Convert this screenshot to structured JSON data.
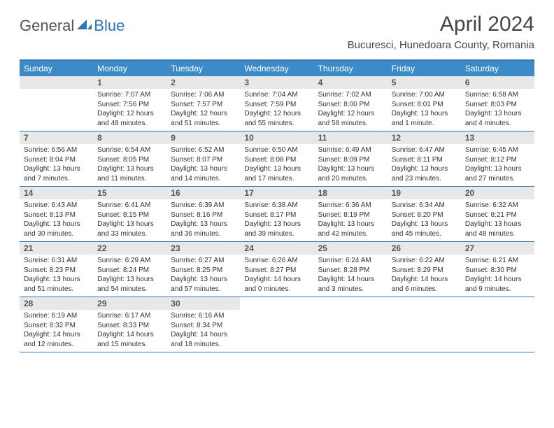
{
  "logo": {
    "general": "General",
    "blue": "Blue"
  },
  "title": "April 2024",
  "location": "Bucuresci, Hunedoara County, Romania",
  "colors": {
    "header_bar": "#3b8bc9",
    "border": "#2e75b6",
    "daynum_bg": "#e8e8e8",
    "text": "#333333",
    "title_text": "#444444",
    "logo_blue": "#2e75b6",
    "logo_gray": "#555555",
    "background": "#ffffff"
  },
  "dow": [
    "Sunday",
    "Monday",
    "Tuesday",
    "Wednesday",
    "Thursday",
    "Friday",
    "Saturday"
  ],
  "weeks": [
    [
      {
        "n": "",
        "sr": "",
        "ss": "",
        "dl": ""
      },
      {
        "n": "1",
        "sr": "Sunrise: 7:07 AM",
        "ss": "Sunset: 7:56 PM",
        "dl": "Daylight: 12 hours and 48 minutes."
      },
      {
        "n": "2",
        "sr": "Sunrise: 7:06 AM",
        "ss": "Sunset: 7:57 PM",
        "dl": "Daylight: 12 hours and 51 minutes."
      },
      {
        "n": "3",
        "sr": "Sunrise: 7:04 AM",
        "ss": "Sunset: 7:59 PM",
        "dl": "Daylight: 12 hours and 55 minutes."
      },
      {
        "n": "4",
        "sr": "Sunrise: 7:02 AM",
        "ss": "Sunset: 8:00 PM",
        "dl": "Daylight: 12 hours and 58 minutes."
      },
      {
        "n": "5",
        "sr": "Sunrise: 7:00 AM",
        "ss": "Sunset: 8:01 PM",
        "dl": "Daylight: 13 hours and 1 minute."
      },
      {
        "n": "6",
        "sr": "Sunrise: 6:58 AM",
        "ss": "Sunset: 8:03 PM",
        "dl": "Daylight: 13 hours and 4 minutes."
      }
    ],
    [
      {
        "n": "7",
        "sr": "Sunrise: 6:56 AM",
        "ss": "Sunset: 8:04 PM",
        "dl": "Daylight: 13 hours and 7 minutes."
      },
      {
        "n": "8",
        "sr": "Sunrise: 6:54 AM",
        "ss": "Sunset: 8:05 PM",
        "dl": "Daylight: 13 hours and 11 minutes."
      },
      {
        "n": "9",
        "sr": "Sunrise: 6:52 AM",
        "ss": "Sunset: 8:07 PM",
        "dl": "Daylight: 13 hours and 14 minutes."
      },
      {
        "n": "10",
        "sr": "Sunrise: 6:50 AM",
        "ss": "Sunset: 8:08 PM",
        "dl": "Daylight: 13 hours and 17 minutes."
      },
      {
        "n": "11",
        "sr": "Sunrise: 6:49 AM",
        "ss": "Sunset: 8:09 PM",
        "dl": "Daylight: 13 hours and 20 minutes."
      },
      {
        "n": "12",
        "sr": "Sunrise: 6:47 AM",
        "ss": "Sunset: 8:11 PM",
        "dl": "Daylight: 13 hours and 23 minutes."
      },
      {
        "n": "13",
        "sr": "Sunrise: 6:45 AM",
        "ss": "Sunset: 8:12 PM",
        "dl": "Daylight: 13 hours and 27 minutes."
      }
    ],
    [
      {
        "n": "14",
        "sr": "Sunrise: 6:43 AM",
        "ss": "Sunset: 8:13 PM",
        "dl": "Daylight: 13 hours and 30 minutes."
      },
      {
        "n": "15",
        "sr": "Sunrise: 6:41 AM",
        "ss": "Sunset: 8:15 PM",
        "dl": "Daylight: 13 hours and 33 minutes."
      },
      {
        "n": "16",
        "sr": "Sunrise: 6:39 AM",
        "ss": "Sunset: 8:16 PM",
        "dl": "Daylight: 13 hours and 36 minutes."
      },
      {
        "n": "17",
        "sr": "Sunrise: 6:38 AM",
        "ss": "Sunset: 8:17 PM",
        "dl": "Daylight: 13 hours and 39 minutes."
      },
      {
        "n": "18",
        "sr": "Sunrise: 6:36 AM",
        "ss": "Sunset: 8:19 PM",
        "dl": "Daylight: 13 hours and 42 minutes."
      },
      {
        "n": "19",
        "sr": "Sunrise: 6:34 AM",
        "ss": "Sunset: 8:20 PM",
        "dl": "Daylight: 13 hours and 45 minutes."
      },
      {
        "n": "20",
        "sr": "Sunrise: 6:32 AM",
        "ss": "Sunset: 8:21 PM",
        "dl": "Daylight: 13 hours and 48 minutes."
      }
    ],
    [
      {
        "n": "21",
        "sr": "Sunrise: 6:31 AM",
        "ss": "Sunset: 8:23 PM",
        "dl": "Daylight: 13 hours and 51 minutes."
      },
      {
        "n": "22",
        "sr": "Sunrise: 6:29 AM",
        "ss": "Sunset: 8:24 PM",
        "dl": "Daylight: 13 hours and 54 minutes."
      },
      {
        "n": "23",
        "sr": "Sunrise: 6:27 AM",
        "ss": "Sunset: 8:25 PM",
        "dl": "Daylight: 13 hours and 57 minutes."
      },
      {
        "n": "24",
        "sr": "Sunrise: 6:26 AM",
        "ss": "Sunset: 8:27 PM",
        "dl": "Daylight: 14 hours and 0 minutes."
      },
      {
        "n": "25",
        "sr": "Sunrise: 6:24 AM",
        "ss": "Sunset: 8:28 PM",
        "dl": "Daylight: 14 hours and 3 minutes."
      },
      {
        "n": "26",
        "sr": "Sunrise: 6:22 AM",
        "ss": "Sunset: 8:29 PM",
        "dl": "Daylight: 14 hours and 6 minutes."
      },
      {
        "n": "27",
        "sr": "Sunrise: 6:21 AM",
        "ss": "Sunset: 8:30 PM",
        "dl": "Daylight: 14 hours and 9 minutes."
      }
    ],
    [
      {
        "n": "28",
        "sr": "Sunrise: 6:19 AM",
        "ss": "Sunset: 8:32 PM",
        "dl": "Daylight: 14 hours and 12 minutes."
      },
      {
        "n": "29",
        "sr": "Sunrise: 6:17 AM",
        "ss": "Sunset: 8:33 PM",
        "dl": "Daylight: 14 hours and 15 minutes."
      },
      {
        "n": "30",
        "sr": "Sunrise: 6:16 AM",
        "ss": "Sunset: 8:34 PM",
        "dl": "Daylight: 14 hours and 18 minutes."
      },
      {
        "n": "",
        "sr": "",
        "ss": "",
        "dl": ""
      },
      {
        "n": "",
        "sr": "",
        "ss": "",
        "dl": ""
      },
      {
        "n": "",
        "sr": "",
        "ss": "",
        "dl": ""
      },
      {
        "n": "",
        "sr": "",
        "ss": "",
        "dl": ""
      }
    ]
  ]
}
